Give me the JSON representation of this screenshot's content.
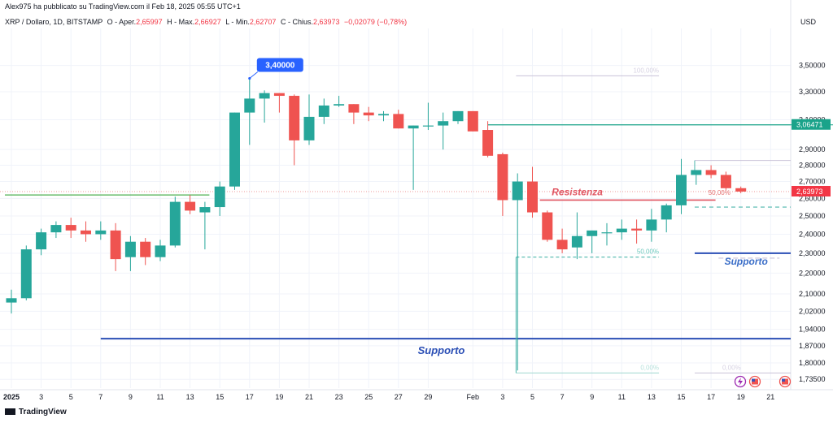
{
  "header": {
    "publish_line": "Alex975 ha pubblicato su TradingView.com il Feb 18, 2025 05:55 UTC+1",
    "symbol": "XRP / Dollaro, 1D, BITSTAMP",
    "open_label": "O - Aper.",
    "open": "2,65997",
    "high_label": "H - Max.",
    "high": "2,66927",
    "low_label": "L - Min.",
    "low": "2,62707",
    "close_label": "C - Chius.",
    "close": "2,63973",
    "change": "−0,02079 (−0,78%)"
  },
  "currency": "USD",
  "footer": {
    "brand": "TradingView"
  },
  "colors": {
    "up": "#26a69a",
    "down": "#ef5350",
    "support": "#2a4eb5",
    "resistance": "#e05460",
    "green_line": "#4caf50",
    "fib": "#9ad3cc"
  },
  "chart_data": {
    "type": "candlestick",
    "y_axis": {
      "ticks": [
        "3,50000",
        "3,30000",
        "3,10000",
        "2,90000",
        "2,80000",
        "2,70000",
        "2,60000",
        "2,50000",
        "2,40000",
        "2,30000",
        "2,20000",
        "2,10000",
        "2,02000",
        "1,94000",
        "1,87000",
        "1,80000",
        "1,73500"
      ],
      "scale": "log",
      "range": [
        1.72,
        3.62
      ]
    },
    "x_axis": {
      "labels": [
        {
          "i": 0,
          "t": "2025",
          "bold": true
        },
        {
          "i": 2,
          "t": "3"
        },
        {
          "i": 4,
          "t": "5"
        },
        {
          "i": 6,
          "t": "7"
        },
        {
          "i": 8,
          "t": "9"
        },
        {
          "i": 10,
          "t": "11"
        },
        {
          "i": 12,
          "t": "13"
        },
        {
          "i": 14,
          "t": "15"
        },
        {
          "i": 16,
          "t": "17"
        },
        {
          "i": 18,
          "t": "19"
        },
        {
          "i": 20,
          "t": "21"
        },
        {
          "i": 22,
          "t": "23"
        },
        {
          "i": 24,
          "t": "25"
        },
        {
          "i": 26,
          "t": "27"
        },
        {
          "i": 28,
          "t": "29"
        },
        {
          "i": 31,
          "t": "Feb"
        },
        {
          "i": 33,
          "t": "3"
        },
        {
          "i": 35,
          "t": "5"
        },
        {
          "i": 37,
          "t": "7"
        },
        {
          "i": 39,
          "t": "9"
        },
        {
          "i": 41,
          "t": "11"
        },
        {
          "i": 43,
          "t": "13"
        },
        {
          "i": 45,
          "t": "15"
        },
        {
          "i": 47,
          "t": "17"
        },
        {
          "i": 49,
          "t": "19"
        },
        {
          "i": 51,
          "t": "21"
        }
      ]
    },
    "candles": [
      [
        2.06,
        2.12,
        2.01,
        2.08
      ],
      [
        2.08,
        2.34,
        2.07,
        2.32
      ],
      [
        2.32,
        2.43,
        2.29,
        2.41
      ],
      [
        2.41,
        2.47,
        2.38,
        2.45
      ],
      [
        2.45,
        2.49,
        2.38,
        2.42
      ],
      [
        2.42,
        2.47,
        2.36,
        2.4
      ],
      [
        2.4,
        2.47,
        2.37,
        2.42
      ],
      [
        2.42,
        2.46,
        2.21,
        2.27
      ],
      [
        2.28,
        2.39,
        2.21,
        2.36
      ],
      [
        2.36,
        2.38,
        2.24,
        2.28
      ],
      [
        2.28,
        2.37,
        2.26,
        2.34
      ],
      [
        2.34,
        2.61,
        2.33,
        2.58
      ],
      [
        2.58,
        2.62,
        2.51,
        2.53
      ],
      [
        2.52,
        2.58,
        2.32,
        2.55
      ],
      [
        2.55,
        2.7,
        2.5,
        2.67
      ],
      [
        2.67,
        3.15,
        2.65,
        3.15
      ],
      [
        3.15,
        3.4,
        2.93,
        3.25
      ],
      [
        3.25,
        3.31,
        3.08,
        3.29
      ],
      [
        3.29,
        3.29,
        3.15,
        3.27
      ],
      [
        3.27,
        3.28,
        2.8,
        2.96
      ],
      [
        2.96,
        3.28,
        2.93,
        3.12
      ],
      [
        3.12,
        3.25,
        3.07,
        3.2
      ],
      [
        3.2,
        3.27,
        3.19,
        3.21
      ],
      [
        3.21,
        3.21,
        3.07,
        3.15
      ],
      [
        3.15,
        3.19,
        3.09,
        3.13
      ],
      [
        3.13,
        3.16,
        3.09,
        3.14
      ],
      [
        3.14,
        3.17,
        3.04,
        3.04
      ],
      [
        3.04,
        3.06,
        2.65,
        3.06
      ],
      [
        3.06,
        3.22,
        3.03,
        3.06
      ],
      [
        3.06,
        3.15,
        2.9,
        3.09
      ],
      [
        3.09,
        3.16,
        3.07,
        3.16
      ],
      [
        3.16,
        3.16,
        3.02,
        3.02
      ],
      [
        3.03,
        3.09,
        2.85,
        2.86
      ],
      [
        2.87,
        2.88,
        2.5,
        2.59
      ],
      [
        2.59,
        2.75,
        1.77,
        2.7
      ],
      [
        2.7,
        2.79,
        2.49,
        2.52
      ],
      [
        2.52,
        2.53,
        2.36,
        2.37
      ],
      [
        2.37,
        2.43,
        2.3,
        2.32
      ],
      [
        2.33,
        2.52,
        2.27,
        2.39
      ],
      [
        2.39,
        2.42,
        2.3,
        2.42
      ],
      [
        2.41,
        2.46,
        2.34,
        2.41
      ],
      [
        2.41,
        2.48,
        2.37,
        2.43
      ],
      [
        2.43,
        2.48,
        2.35,
        2.42
      ],
      [
        2.42,
        2.54,
        2.36,
        2.48
      ],
      [
        2.48,
        2.57,
        2.41,
        2.56
      ],
      [
        2.56,
        2.84,
        2.51,
        2.74
      ],
      [
        2.74,
        2.77,
        2.68,
        2.77
      ],
      [
        2.77,
        2.8,
        2.72,
        2.74
      ],
      [
        2.74,
        2.76,
        2.65,
        2.66
      ],
      [
        2.66,
        2.67,
        2.63,
        2.64
      ]
    ],
    "annotations": {
      "high_badge": {
        "i": 16,
        "value": "3,40000"
      },
      "price_badge": "2,63973",
      "level_badge": "3,06471",
      "resistance_label": "Resistenza",
      "support_label": "Supporto",
      "fib_labels": {
        "f100": "100,00%",
        "f50": "50,00%",
        "f0": "0,00%"
      }
    }
  }
}
